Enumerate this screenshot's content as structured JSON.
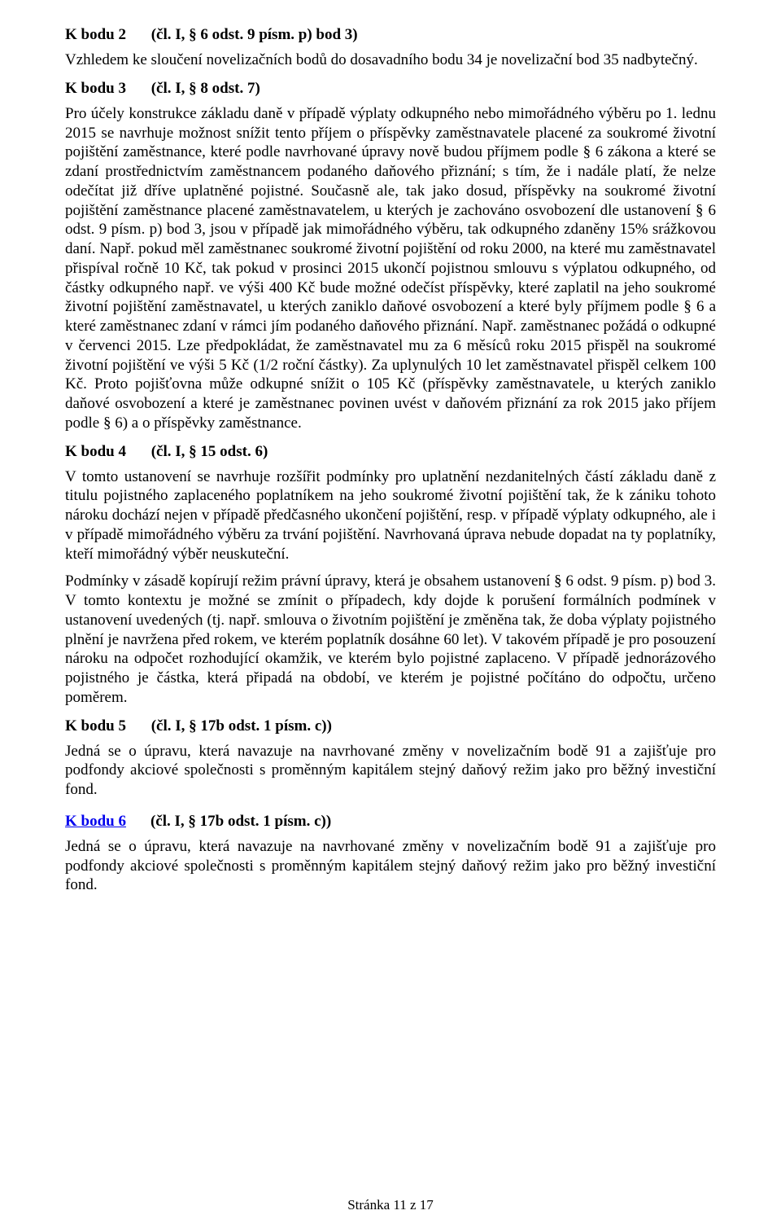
{
  "sections": {
    "s2": {
      "label": "K bodu 2",
      "ref": "(čl. I, § 6 odst. 9 písm. p) bod 3)",
      "p1": "Vzhledem ke sloučení novelizačních bodů do dosavadního bodu 34 je novelizační bod 35 nadbytečný."
    },
    "s3": {
      "label": "K bodu 3",
      "ref": "(čl. I, § 8 odst. 7)",
      "p1": "Pro účely konstrukce základu daně v případě výplaty odkupného nebo mimořádného výběru po 1. lednu 2015 se navrhuje možnost snížit tento příjem o příspěvky zaměstnavatele placené za soukromé životní pojištění zaměstnance, které podle navrhované úpravy nově budou příjmem podle § 6 zákona a které se zdaní prostřednictvím zaměstnancem podaného daňového přiznání; s tím, že i nadále platí, že nelze odečítat již dříve uplatněné pojistné. Současně ale, tak jako dosud, příspěvky na soukromé životní pojištění zaměstnance placené zaměstnavatelem, u kterých je zachováno osvobození dle ustanovení § 6 odst. 9 písm. p) bod 3, jsou v případě jak mimořádného výběru, tak odkupného zdaněny 15% srážkovou daní. Např. pokud měl zaměstnanec soukromé životní pojištění od roku 2000, na které mu zaměstnavatel přispíval ročně 10 Kč, tak pokud v prosinci 2015 ukončí pojistnou smlouvu s výplatou odkupného, od částky odkupného např. ve výši 400 Kč bude možné odečíst příspěvky, které zaplatil na jeho soukromé životní pojištění zaměstnavatel, u kterých zaniklo daňové osvobození a které byly příjmem podle § 6 a které zaměstnanec zdaní v rámci jím podaného daňového přiznání. Např. zaměstnanec požádá o odkupné v červenci 2015. Lze předpokládat, že zaměstnavatel mu za 6 měsíců roku 2015 přispěl na soukromé životní pojištění ve výši 5 Kč (1/2 roční částky). Za uplynulých 10 let zaměstnavatel přispěl celkem 100 Kč. Proto pojišťovna může odkupné snížit o 105 Kč (příspěvky zaměstnavatele, u kterých zaniklo daňové osvobození a které je zaměstnanec povinen uvést v daňovém přiznání za rok 2015 jako příjem podle § 6) a o příspěvky zaměstnance."
    },
    "s4": {
      "label": "K bodu 4",
      "ref": "(čl. I, § 15 odst. 6)",
      "p1": "V tomto ustanovení se navrhuje rozšířit podmínky pro uplatnění nezdanitelných částí základu daně z titulu pojistného zaplaceného poplatníkem na jeho soukromé životní pojištění tak, že k zániku tohoto nároku dochází nejen v případě předčasného ukončení pojištění, resp. v případě výplaty odkupného, ale i v případě mimořádného výběru za trvání pojištění. Navrhovaná úprava nebude dopadat na ty poplatníky, kteří mimořádný výběr neuskuteční.",
      "p2": "Podmínky v zásadě kopírují režim právní úpravy, která je obsahem ustanovení § 6 odst. 9 písm. p) bod 3. V tomto kontextu je možné se zmínit o případech, kdy dojde k porušení formálních podmínek v ustanovení uvedených (tj. např. smlouva o životním pojištění je změněna tak, že doba výplaty pojistného plnění je navržena před rokem, ve kterém poplatník dosáhne 60 let). V takovém případě je pro posouzení nároku na odpočet rozhodující okamžik, ve kterém bylo pojistné zaplaceno. V případě jednorázového pojistného je částka, která připadá na období, ve kterém je pojistné počítáno do odpočtu, určeno poměrem."
    },
    "s5": {
      "label": "K bodu 5",
      "ref": "(čl. I, § 17b odst. 1 písm. c))",
      "p1": "Jedná se o úpravu, která navazuje na navrhované změny v novelizačním bodě 91 a zajišťuje pro podfondy akciové společnosti s proměnným kapitálem stejný daňový režim jako pro běžný investiční fond."
    },
    "s6": {
      "label": "K bodu 6",
      "ref": "(čl. I, § 17b odst. 1 písm. c))",
      "p1": "Jedná se o úpravu, která navazuje na navrhované změny v novelizačním bodě 91 a zajišťuje pro podfondy akciové společnosti s proměnným kapitálem stejný daňový režim jako pro běžný investiční fond."
    }
  },
  "footer": "Stránka 11 z 17"
}
